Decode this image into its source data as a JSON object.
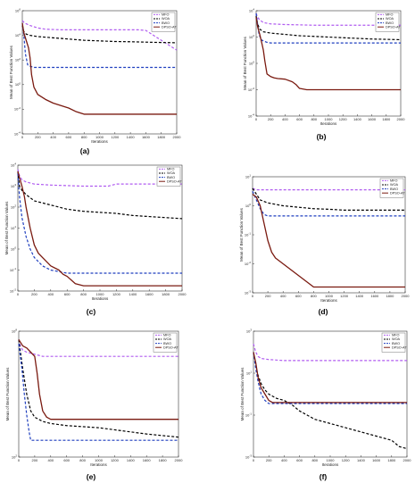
{
  "colors": {
    "MFO": "#b05cf0",
    "WOA": "#000000",
    "BWO": "#1f3fbf",
    "DPSO-AT": "#7a1a10"
  },
  "chart_data": [
    {
      "type": "line",
      "caption": "(a)",
      "xlabel": "Iterations",
      "ylabel": "Mean of Best Function Values",
      "xlim": [
        0,
        2000
      ],
      "xticks": [
        0,
        200,
        400,
        600,
        800,
        1000,
        1200,
        1400,
        1600,
        1800,
        2000
      ],
      "yscale": "log",
      "ylim": [
        -4,
        6
      ],
      "yticks": [
        -4,
        -2,
        0,
        2,
        4,
        6
      ],
      "grid": false,
      "legend_position": "top-right",
      "series": [
        {
          "name": "MFO",
          "key": "MFO",
          "dash": "3,2",
          "x": [
            0,
            30,
            100,
            200,
            300,
            500,
            1000,
            1500,
            1600,
            1700,
            1800,
            1900,
            2000
          ],
          "y": [
            5.2,
            5.0,
            4.8,
            4.6,
            4.5,
            4.45,
            4.45,
            4.45,
            4.4,
            4.0,
            3.6,
            3.2,
            2.8
          ]
        },
        {
          "name": "WOA",
          "key": "WOA",
          "dash": "3,2",
          "x": [
            0,
            20,
            50,
            100,
            200,
            400,
            600,
            800,
            1000,
            1200,
            1400,
            1600,
            1800,
            2000
          ],
          "y": [
            4.8,
            4.3,
            4.1,
            4.0,
            3.9,
            3.8,
            3.7,
            3.6,
            3.55,
            3.5,
            3.48,
            3.45,
            3.42,
            3.4
          ]
        },
        {
          "name": "BWO",
          "key": "BWO",
          "dash": "3,2",
          "x": [
            0,
            20,
            40,
            70,
            100,
            150,
            200,
            400,
            800,
            1200,
            1600,
            2000
          ],
          "y": [
            5.0,
            4.0,
            2.5,
            1.6,
            1.5,
            1.4,
            1.4,
            1.4,
            1.4,
            1.4,
            1.4,
            1.4
          ]
        },
        {
          "name": "DPSO-AT",
          "key": "DPSO-AT",
          "dash": "",
          "x": [
            0,
            20,
            50,
            80,
            100,
            120,
            150,
            200,
            300,
            400,
            500,
            600,
            700,
            800,
            1000,
            1500,
            2000
          ],
          "y": [
            5.0,
            4.2,
            3.6,
            3.0,
            2.2,
            0.8,
            -0.2,
            -0.8,
            -1.2,
            -1.5,
            -1.7,
            -1.9,
            -2.2,
            -2.4,
            -2.4,
            -2.4,
            -2.4
          ]
        }
      ]
    },
    {
      "type": "line",
      "caption": "(b)",
      "xlabel": "Iterations",
      "ylabel": "Mean of Best Function Values",
      "xlim": [
        0,
        2000
      ],
      "xticks": [
        0,
        200,
        400,
        600,
        800,
        1000,
        1200,
        1400,
        1600,
        1800,
        2000
      ],
      "yscale": "log",
      "ylim": [
        -4,
        4
      ],
      "yticks": [
        -4,
        -2,
        0,
        2,
        4
      ],
      "grid": false,
      "legend_position": "top-right",
      "series": [
        {
          "name": "MFO",
          "key": "MFO",
          "dash": "3,2",
          "x": [
            0,
            20,
            50,
            100,
            200,
            400,
            800,
            1200,
            1600,
            2000
          ],
          "y": [
            3.8,
            3.5,
            3.3,
            3.1,
            3.0,
            2.95,
            2.9,
            2.9,
            2.9,
            2.9
          ]
        },
        {
          "name": "WOA",
          "key": "WOA",
          "dash": "3,2",
          "x": [
            0,
            20,
            50,
            100,
            200,
            400,
            600,
            800,
            1000,
            1200,
            1400,
            1600,
            2000
          ],
          "y": [
            3.6,
            3.0,
            2.6,
            2.4,
            2.3,
            2.2,
            2.1,
            2.05,
            2.0,
            1.95,
            1.9,
            1.85,
            1.8
          ]
        },
        {
          "name": "BWO",
          "key": "BWO",
          "dash": "3,2",
          "x": [
            0,
            20,
            40,
            70,
            100,
            150,
            200,
            400,
            800,
            1200,
            1600,
            2000
          ],
          "y": [
            3.8,
            3.0,
            2.2,
            1.8,
            1.7,
            1.6,
            1.55,
            1.55,
            1.55,
            1.55,
            1.55,
            1.55
          ]
        },
        {
          "name": "DPSO-AT",
          "key": "DPSO-AT",
          "dash": "",
          "x": [
            0,
            20,
            50,
            80,
            100,
            120,
            150,
            200,
            250,
            300,
            400,
            500,
            550,
            600,
            700,
            1000,
            1500,
            2000
          ],
          "y": [
            3.5,
            2.8,
            2.2,
            1.5,
            1.0,
            0.2,
            -0.8,
            -1.0,
            -1.1,
            -1.15,
            -1.2,
            -1.4,
            -1.6,
            -1.9,
            -2.0,
            -2.0,
            -2.0,
            -2.0
          ]
        }
      ]
    },
    {
      "type": "line",
      "caption": "(c)",
      "xlabel": "Iterations",
      "ylabel": "Mean of Best Function Values",
      "xlim": [
        0,
        2000
      ],
      "xticks": [
        0,
        200,
        400,
        600,
        800,
        1000,
        1200,
        1400,
        1600,
        1800,
        2000
      ],
      "yscale": "log",
      "ylim": [
        -2,
        4
      ],
      "yticks": [
        -2,
        -1,
        0,
        1,
        2,
        3,
        4
      ],
      "grid": false,
      "legend_position": "top-right",
      "series": [
        {
          "name": "MFO",
          "key": "MFO",
          "dash": "3,2",
          "x": [
            0,
            20,
            50,
            100,
            200,
            400,
            800,
            1000,
            1100,
            1200,
            1600,
            2000
          ],
          "y": [
            3.8,
            3.5,
            3.3,
            3.2,
            3.1,
            3.05,
            3.0,
            3.0,
            3.0,
            3.1,
            3.1,
            3.1
          ]
        },
        {
          "name": "WOA",
          "key": "WOA",
          "dash": "3,2",
          "x": [
            0,
            20,
            50,
            100,
            150,
            200,
            400,
            600,
            800,
            1000,
            1200,
            1400,
            1600,
            1800,
            2000
          ],
          "y": [
            3.7,
            3.0,
            2.8,
            2.6,
            2.45,
            2.3,
            2.1,
            1.9,
            1.8,
            1.75,
            1.7,
            1.6,
            1.55,
            1.5,
            1.45
          ]
        },
        {
          "name": "BWO",
          "key": "BWO",
          "dash": "3,2",
          "x": [
            0,
            20,
            50,
            100,
            150,
            200,
            300,
            400,
            600,
            800,
            1200,
            1600,
            2000
          ],
          "y": [
            3.6,
            2.5,
            1.5,
            0.6,
            0.0,
            -0.4,
            -0.8,
            -1.0,
            -1.15,
            -1.15,
            -1.15,
            -1.15,
            -1.15
          ]
        },
        {
          "name": "DPSO-AT",
          "key": "DPSO-AT",
          "dash": "",
          "x": [
            0,
            20,
            50,
            80,
            100,
            150,
            200,
            250,
            300,
            400,
            500,
            550,
            600,
            700,
            800,
            1000,
            1500,
            2000
          ],
          "y": [
            3.7,
            3.4,
            3.0,
            2.5,
            2.0,
            1.0,
            0.2,
            -0.2,
            -0.4,
            -0.8,
            -1.0,
            -1.2,
            -1.3,
            -1.65,
            -1.75,
            -1.75,
            -1.75,
            -1.75
          ]
        }
      ]
    },
    {
      "type": "line",
      "caption": "(d)",
      "xlabel": "Iterations",
      "ylabel": "Mean of Best Function Values",
      "xlim": [
        0,
        2000
      ],
      "xticks": [
        0,
        200,
        400,
        600,
        800,
        1000,
        1200,
        1400,
        1600,
        1800,
        2000
      ],
      "yscale": "log",
      "ylim": [
        -3,
        1
      ],
      "yticks": [
        -3,
        -2,
        -1,
        0,
        1
      ],
      "grid": false,
      "legend_position": "top-right",
      "series": [
        {
          "name": "MFO",
          "key": "MFO",
          "dash": "3,2",
          "x": [
            0,
            50,
            100,
            500,
            1000,
            1500,
            2000
          ],
          "y": [
            0.6,
            0.55,
            0.55,
            0.55,
            0.55,
            0.55,
            0.55
          ]
        },
        {
          "name": "WOA",
          "key": "WOA",
          "dash": "3,2",
          "x": [
            0,
            50,
            100,
            200,
            300,
            400,
            600,
            800,
            1000,
            1200,
            1400,
            1600,
            1800,
            2000
          ],
          "y": [
            0.6,
            0.4,
            0.2,
            0.1,
            0.05,
            0.0,
            -0.05,
            -0.1,
            -0.12,
            -0.15,
            -0.15,
            -0.15,
            -0.15,
            -0.15
          ]
        },
        {
          "name": "BWO",
          "key": "BWO",
          "dash": "3,2",
          "x": [
            0,
            50,
            100,
            150,
            200,
            300,
            500,
            1000,
            1500,
            2000
          ],
          "y": [
            0.5,
            0.2,
            -0.1,
            -0.3,
            -0.35,
            -0.35,
            -0.35,
            -0.35,
            -0.35,
            -0.35
          ]
        },
        {
          "name": "DPSO-AT",
          "key": "DPSO-AT",
          "dash": "",
          "x": [
            0,
            50,
            100,
            150,
            200,
            250,
            300,
            400,
            500,
            600,
            700,
            800,
            1000,
            1500,
            2000
          ],
          "y": [
            0.4,
            0.3,
            0.0,
            -0.6,
            -1.2,
            -1.6,
            -1.8,
            -2.0,
            -2.2,
            -2.4,
            -2.6,
            -2.8,
            -2.8,
            -2.8,
            -2.8
          ]
        }
      ]
    },
    {
      "type": "line",
      "caption": "(e)",
      "xlabel": "Iterations",
      "ylabel": "Mean of Best Function Values",
      "xlim": [
        0,
        2000
      ],
      "xticks": [
        0,
        200,
        400,
        600,
        800,
        1000,
        1200,
        1400,
        1600,
        1800,
        2000
      ],
      "yscale": "log",
      "ylim": [
        2,
        8
      ],
      "yticks": [
        2,
        8
      ],
      "grid": false,
      "legend_position": "top-right",
      "series": [
        {
          "name": "MFO",
          "key": "MFO",
          "dash": "3,2",
          "x": [
            0,
            20,
            50,
            100,
            200,
            300,
            500,
            1000,
            2000
          ],
          "y": [
            7.6,
            7.3,
            7.1,
            7.0,
            6.9,
            6.8,
            6.8,
            6.8,
            6.8
          ]
        },
        {
          "name": "WOA",
          "key": "WOA",
          "dash": "3,2",
          "x": [
            0,
            50,
            100,
            150,
            200,
            300,
            400,
            500,
            600,
            800,
            1000,
            1200,
            1600,
            2000
          ],
          "y": [
            7.6,
            6.2,
            5.0,
            4.2,
            3.9,
            3.7,
            3.6,
            3.55,
            3.5,
            3.45,
            3.4,
            3.3,
            3.1,
            2.95
          ]
        },
        {
          "name": "BWO",
          "key": "BWO",
          "dash": "3,2",
          "x": [
            0,
            40,
            70,
            100,
            130,
            150,
            200,
            400,
            800,
            1200,
            1600,
            2000
          ],
          "y": [
            7.4,
            6.2,
            5.0,
            4.0,
            3.2,
            2.8,
            2.8,
            2.8,
            2.8,
            2.8,
            2.8,
            2.8
          ]
        },
        {
          "name": "DPSO-AT",
          "key": "DPSO-AT",
          "dash": "",
          "x": [
            0,
            50,
            100,
            150,
            200,
            230,
            260,
            300,
            350,
            400,
            500,
            1000,
            1500,
            2000
          ],
          "y": [
            7.6,
            7.3,
            7.2,
            7.0,
            6.8,
            6.0,
            5.0,
            4.2,
            3.9,
            3.8,
            3.8,
            3.8,
            3.8,
            3.8
          ]
        }
      ]
    },
    {
      "type": "line",
      "caption": "(f)",
      "xlabel": "Iterations",
      "ylabel": "Mean of Best Function Values",
      "xlim": [
        0,
        2000
      ],
      "xticks": [
        0,
        200,
        400,
        600,
        800,
        1000,
        1200,
        1400,
        1600,
        1800,
        2000
      ],
      "yscale": "log",
      "ylim": [
        -3,
        3
      ],
      "yticks": [
        -3,
        -1,
        1,
        3
      ],
      "grid": false,
      "legend_position": "top-right",
      "series": [
        {
          "name": "MFO",
          "key": "MFO",
          "dash": "3,2",
          "x": [
            0,
            30,
            60,
            100,
            200,
            400,
            800,
            1200,
            1600,
            2000
          ],
          "y": [
            2.4,
            2.0,
            1.8,
            1.7,
            1.65,
            1.6,
            1.6,
            1.6,
            1.6,
            1.6
          ]
        },
        {
          "name": "WOA",
          "key": "WOA",
          "dash": "3,2",
          "x": [
            0,
            50,
            100,
            150,
            200,
            300,
            400,
            500,
            600,
            700,
            800,
            1000,
            1200,
            1400,
            1600,
            1800,
            1900,
            2000
          ],
          "y": [
            2.0,
            1.0,
            0.5,
            0.2,
            0.0,
            -0.2,
            -0.3,
            -0.5,
            -0.8,
            -1.0,
            -1.2,
            -1.4,
            -1.6,
            -1.8,
            -2.0,
            -2.2,
            -2.5,
            -2.6
          ]
        },
        {
          "name": "BWO",
          "key": "BWO",
          "dash": "3,2",
          "x": [
            0,
            30,
            60,
            100,
            150,
            200,
            300,
            500,
            1000,
            1500,
            2000
          ],
          "y": [
            2.0,
            1.2,
            0.6,
            0.0,
            -0.3,
            -0.45,
            -0.45,
            -0.45,
            -0.45,
            -0.45,
            -0.45
          ]
        },
        {
          "name": "DPSO-AT",
          "key": "DPSO-AT",
          "dash": "",
          "x": [
            0,
            30,
            60,
            100,
            150,
            200,
            250,
            300,
            1000,
            2000
          ],
          "y": [
            2.0,
            1.5,
            0.8,
            0.3,
            0.0,
            -0.3,
            -0.4,
            -0.4,
            -0.4,
            -0.4
          ]
        }
      ]
    }
  ]
}
